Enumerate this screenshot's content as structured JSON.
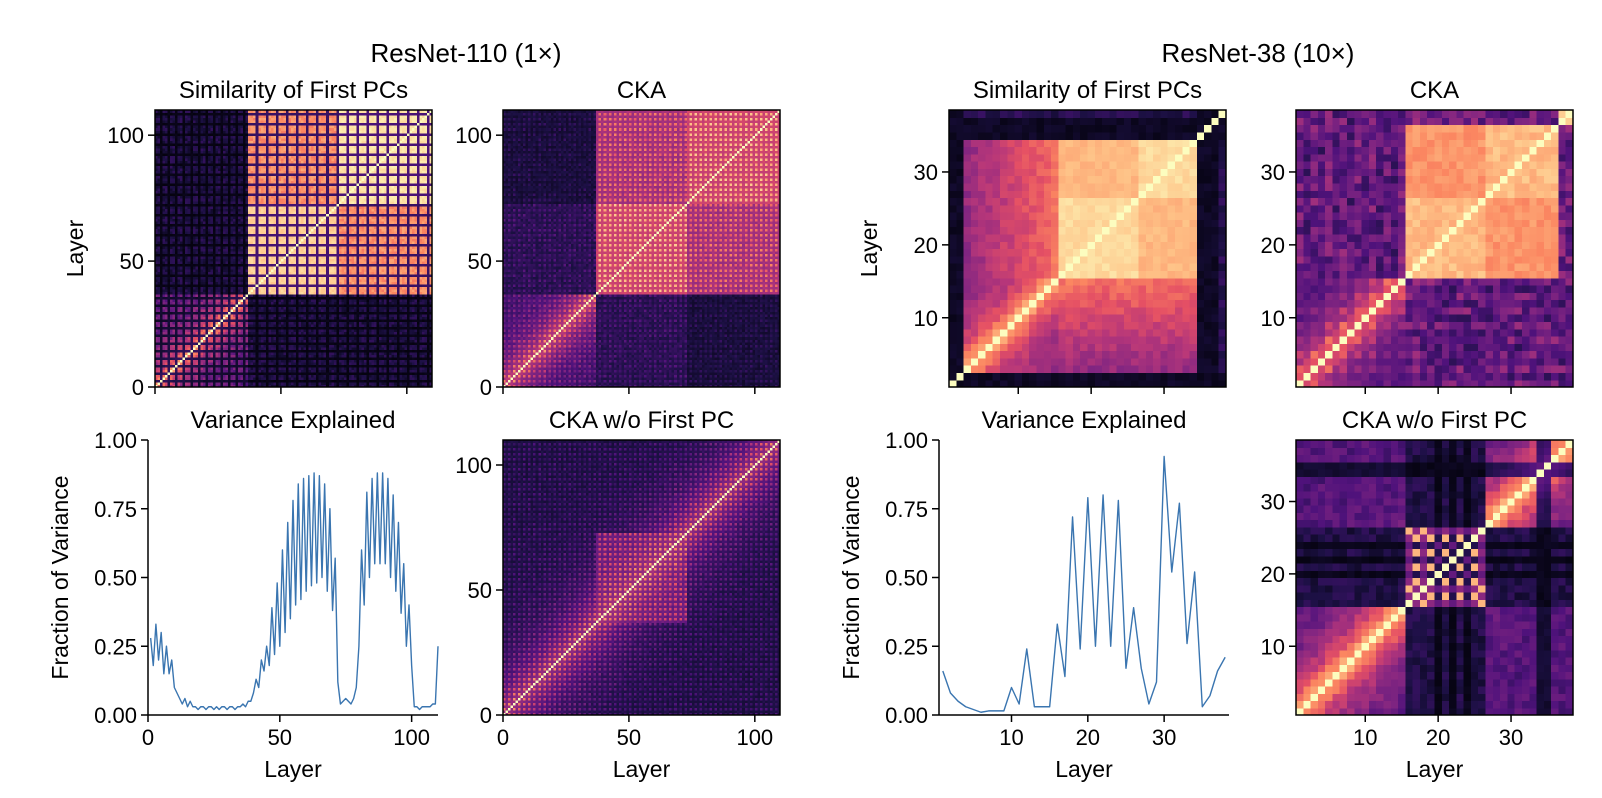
{
  "figure": {
    "groups": [
      {
        "title": "ResNet-110 (1×)"
      },
      {
        "title": "ResNet-38 (10×)"
      }
    ]
  },
  "colors": {
    "line": "#3a75b0",
    "axis": "#000000",
    "colormap": [
      "#000004",
      "#1c1044",
      "#4f127b",
      "#812581",
      "#b5367a",
      "#e55064",
      "#fb8761",
      "#fec287",
      "#fcfdbf"
    ]
  },
  "chart_data": [
    {
      "id": "r110-pc",
      "type": "heatmap",
      "group": 0,
      "title": "Similarity of First PCs",
      "xlabel": "",
      "ylabel": "Layer",
      "n": 110,
      "pattern": "pc110",
      "xlim": [
        0,
        110
      ],
      "ylim": [
        0,
        110
      ],
      "xticks": [
        0,
        50,
        100
      ],
      "xtick_labels": [
        "",
        "",
        ""
      ],
      "yticks": [
        0,
        50,
        100
      ],
      "ytick_labels": [
        "0",
        "50",
        "100"
      ]
    },
    {
      "id": "r110-cka",
      "type": "heatmap",
      "group": 0,
      "title": "CKA",
      "xlabel": "",
      "ylabel": "",
      "n": 110,
      "pattern": "cka110",
      "xlim": [
        0,
        110
      ],
      "ylim": [
        0,
        110
      ],
      "xticks": [
        0,
        50,
        100
      ],
      "xtick_labels": [
        "",
        "",
        ""
      ],
      "yticks": [
        0,
        50,
        100
      ],
      "ytick_labels": [
        "0",
        "50",
        "100"
      ]
    },
    {
      "id": "r110-var",
      "type": "line",
      "group": 0,
      "title": "Variance Explained",
      "xlabel": "Layer",
      "ylabel": "Fraction of Variance",
      "xlim": [
        0,
        110
      ],
      "ylim": [
        0,
        1
      ],
      "xticks": [
        0,
        50,
        100
      ],
      "xtick_labels": [
        "0",
        "50",
        "100"
      ],
      "yticks": [
        0,
        0.25,
        0.5,
        0.75,
        1.0
      ],
      "ytick_labels": [
        "0.00",
        "0.25",
        "0.50",
        "0.75",
        "1.00"
      ],
      "series": [
        {
          "x": [
            1,
            2,
            3,
            4,
            5,
            6,
            7,
            8,
            9,
            10,
            11,
            12,
            13,
            14,
            15,
            16,
            17,
            18,
            19,
            20,
            21,
            22,
            23,
            24,
            25,
            26,
            27,
            28,
            29,
            30,
            31,
            32,
            33,
            34,
            35,
            36,
            37,
            38,
            39,
            40,
            41,
            42,
            43,
            44,
            45,
            46,
            47,
            48,
            49,
            50,
            51,
            52,
            53,
            54,
            55,
            56,
            57,
            58,
            59,
            60,
            61,
            62,
            63,
            64,
            65,
            66,
            67,
            68,
            69,
            70,
            71,
            72,
            73,
            74,
            75,
            76,
            77,
            78,
            79,
            80,
            81,
            82,
            83,
            84,
            85,
            86,
            87,
            88,
            89,
            90,
            91,
            92,
            93,
            94,
            95,
            96,
            97,
            98,
            99,
            100,
            101,
            102,
            103,
            104,
            105,
            106,
            107,
            108,
            109,
            110
          ],
          "y": [
            0.28,
            0.18,
            0.33,
            0.2,
            0.3,
            0.15,
            0.25,
            0.15,
            0.2,
            0.1,
            0.08,
            0.06,
            0.04,
            0.06,
            0.03,
            0.05,
            0.03,
            0.03,
            0.02,
            0.03,
            0.03,
            0.02,
            0.03,
            0.03,
            0.02,
            0.03,
            0.02,
            0.03,
            0.03,
            0.02,
            0.03,
            0.03,
            0.02,
            0.03,
            0.03,
            0.04,
            0.03,
            0.05,
            0.05,
            0.08,
            0.13,
            0.1,
            0.2,
            0.16,
            0.25,
            0.18,
            0.39,
            0.22,
            0.48,
            0.25,
            0.6,
            0.3,
            0.7,
            0.35,
            0.78,
            0.4,
            0.84,
            0.42,
            0.86,
            0.45,
            0.87,
            0.47,
            0.88,
            0.48,
            0.87,
            0.5,
            0.84,
            0.45,
            0.75,
            0.38,
            0.57,
            0.12,
            0.04,
            0.05,
            0.06,
            0.05,
            0.04,
            0.06,
            0.1,
            0.25,
            0.6,
            0.4,
            0.81,
            0.5,
            0.86,
            0.55,
            0.88,
            0.55,
            0.88,
            0.55,
            0.86,
            0.5,
            0.8,
            0.45,
            0.7,
            0.37,
            0.55,
            0.25,
            0.4,
            0.18,
            0.03,
            0.03,
            0.02,
            0.03,
            0.03,
            0.03,
            0.03,
            0.04,
            0.04,
            0.25
          ]
        }
      ]
    },
    {
      "id": "r110-cka-wo",
      "type": "heatmap",
      "group": 0,
      "title": "CKA w/o First PC",
      "xlabel": "Layer",
      "ylabel": "",
      "n": 110,
      "pattern": "wo110",
      "xlim": [
        0,
        110
      ],
      "ylim": [
        0,
        110
      ],
      "xticks": [
        0,
        50,
        100
      ],
      "xtick_labels": [
        "0",
        "50",
        "100"
      ],
      "yticks": [
        0,
        50,
        100
      ],
      "ytick_labels": [
        "0",
        "50",
        "100"
      ]
    },
    {
      "id": "r38-pc",
      "type": "heatmap",
      "group": 1,
      "title": "Similarity of First PCs",
      "xlabel": "",
      "ylabel": "Layer",
      "n": 38,
      "pattern": "pc38",
      "xlim": [
        0.5,
        38.5
      ],
      "ylim": [
        0.5,
        38.5
      ],
      "xticks": [
        10,
        20,
        30
      ],
      "xtick_labels": [
        "",
        "",
        ""
      ],
      "yticks": [
        10,
        20,
        30
      ],
      "ytick_labels": [
        "10",
        "20",
        "30"
      ]
    },
    {
      "id": "r38-cka",
      "type": "heatmap",
      "group": 1,
      "title": "CKA",
      "xlabel": "",
      "ylabel": "",
      "n": 38,
      "pattern": "cka38",
      "xlim": [
        0.5,
        38.5
      ],
      "ylim": [
        0.5,
        38.5
      ],
      "xticks": [
        10,
        20,
        30
      ],
      "xtick_labels": [
        "",
        "",
        ""
      ],
      "yticks": [
        10,
        20,
        30
      ],
      "ytick_labels": [
        "10",
        "20",
        "30"
      ]
    },
    {
      "id": "r38-var",
      "type": "line",
      "group": 1,
      "title": "Variance Explained",
      "xlabel": "Layer",
      "ylabel": "Fraction of Variance",
      "xlim": [
        0.5,
        38.5
      ],
      "ylim": [
        0,
        1
      ],
      "xticks": [
        10,
        20,
        30
      ],
      "xtick_labels": [
        "10",
        "20",
        "30"
      ],
      "yticks": [
        0,
        0.25,
        0.5,
        0.75,
        1.0
      ],
      "ytick_labels": [
        "0.00",
        "0.25",
        "0.50",
        "0.75",
        "1.00"
      ],
      "series": [
        {
          "x": [
            1,
            2,
            3,
            4,
            5,
            6,
            7,
            8,
            9,
            10,
            11,
            12,
            13,
            14,
            15,
            16,
            17,
            18,
            19,
            20,
            21,
            22,
            23,
            24,
            25,
            26,
            27,
            28,
            29,
            30,
            31,
            32,
            33,
            34,
            35,
            36,
            37,
            38
          ],
          "y": [
            0.16,
            0.08,
            0.05,
            0.03,
            0.02,
            0.01,
            0.015,
            0.015,
            0.015,
            0.1,
            0.04,
            0.24,
            0.03,
            0.03,
            0.03,
            0.33,
            0.14,
            0.72,
            0.24,
            0.79,
            0.25,
            0.8,
            0.25,
            0.78,
            0.17,
            0.39,
            0.17,
            0.04,
            0.12,
            0.94,
            0.52,
            0.77,
            0.26,
            0.52,
            0.03,
            0.07,
            0.16,
            0.21
          ]
        }
      ]
    },
    {
      "id": "r38-cka-wo",
      "type": "heatmap",
      "group": 1,
      "title": "CKA w/o First PC",
      "xlabel": "Layer",
      "ylabel": "",
      "n": 38,
      "pattern": "wo38",
      "xlim": [
        0.5,
        38.5
      ],
      "ylim": [
        0.5,
        38.5
      ],
      "xticks": [
        10,
        20,
        30
      ],
      "xtick_labels": [
        "10",
        "20",
        "30"
      ],
      "yticks": [
        10,
        20,
        30
      ],
      "ytick_labels": [
        "10",
        "20",
        "30"
      ]
    }
  ]
}
